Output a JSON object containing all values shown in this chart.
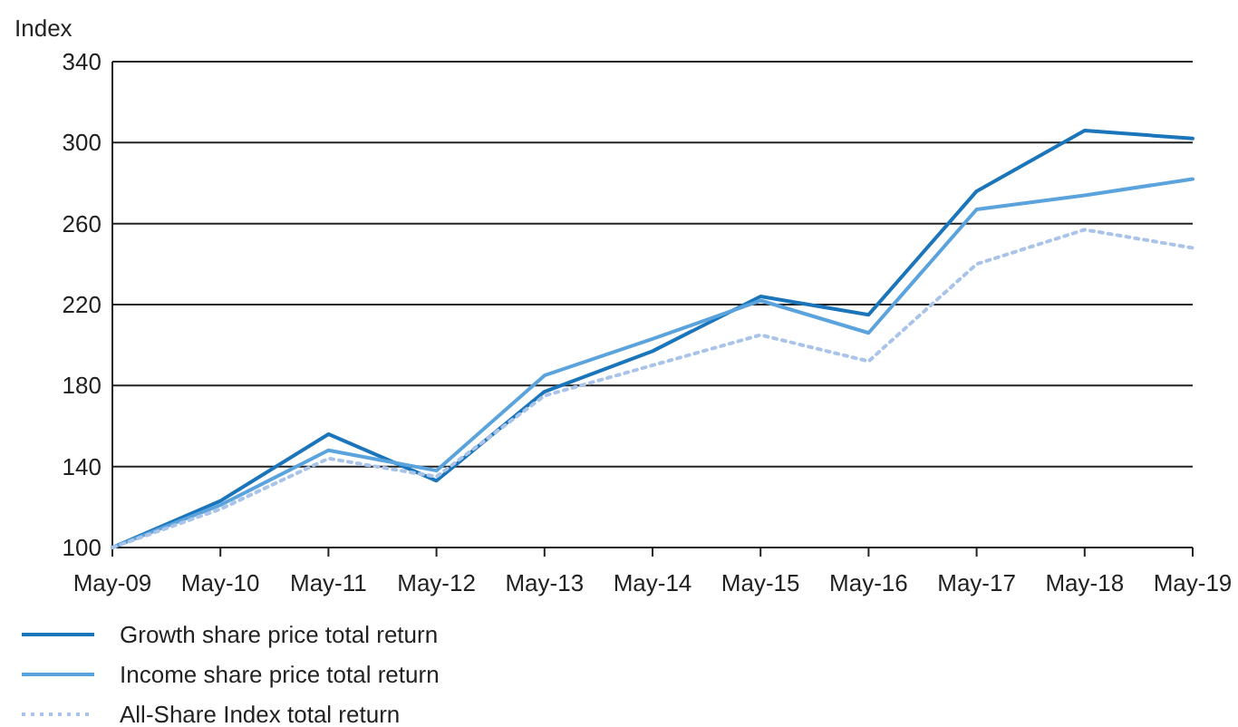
{
  "chart_data": {
    "type": "line",
    "ylabel": "Index",
    "categories": [
      "May-09",
      "May-10",
      "May-11",
      "May-12",
      "May-13",
      "May-14",
      "May-15",
      "May-16",
      "May-17",
      "May-18",
      "May-19"
    ],
    "ylim": [
      100,
      340
    ],
    "yticks": [
      100,
      140,
      180,
      220,
      260,
      300,
      340
    ],
    "grid": "y",
    "legend": "bottom",
    "marker": "none",
    "series": [
      {
        "name": "Growth share price total return",
        "color": "#1a75bb",
        "line_style": "solid",
        "values": [
          100,
          123,
          156,
          133,
          177,
          197,
          224,
          215,
          276,
          306,
          302
        ]
      },
      {
        "name": "Income share price total return",
        "color": "#5ba3dc",
        "line_style": "solid",
        "values": [
          100,
          121,
          148,
          138,
          185,
          203,
          222,
          206,
          267,
          274,
          282
        ]
      },
      {
        "name": "All-Share Index total return",
        "color": "#a9c4e8",
        "line_style": "dotted",
        "values": [
          100,
          119,
          144,
          135,
          175,
          190,
          205,
          192,
          240,
          257,
          248
        ]
      }
    ]
  }
}
